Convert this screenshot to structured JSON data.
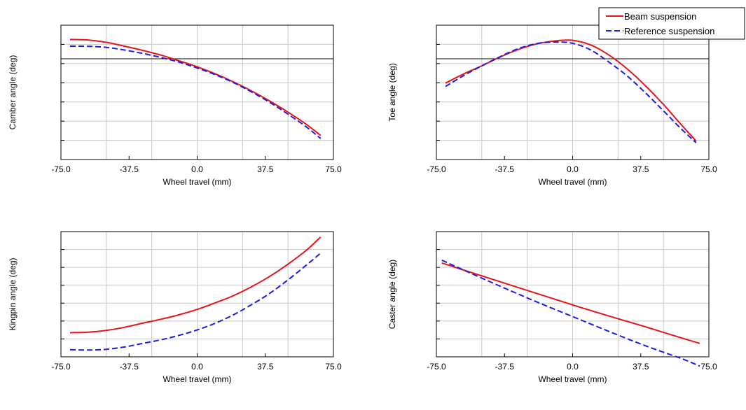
{
  "legend": {
    "entries": [
      {
        "label": "Beam suspension",
        "color": "#e8141b",
        "style": "solid"
      },
      {
        "label": "Reference suspension",
        "color": "#1c1ce6",
        "style": "dashed"
      }
    ]
  },
  "chart_data": [
    {
      "type": "line",
      "xlabel": "Wheel travel (mm)",
      "ylabel": "Camber angle (deg)",
      "xlim": [
        -75,
        75
      ],
      "ylim": [
        -6,
        2
      ],
      "xticks": [
        -75,
        -37.5,
        0,
        37.5,
        75
      ],
      "xtick_labels": [
        "-75.0",
        "-37.5",
        "0.0",
        "37.5",
        "75.0"
      ],
      "grid": true,
      "reference_line_y": 0,
      "legend": "top-right",
      "series": [
        {
          "name": "Beam suspension",
          "color": "#e8141b",
          "style": "solid",
          "x": [
            -70,
            -60,
            -50,
            -40,
            -30,
            -20,
            -10,
            0,
            10,
            20,
            30,
            40,
            50,
            60,
            68
          ],
          "y": [
            1.15,
            1.12,
            0.98,
            0.75,
            0.5,
            0.22,
            -0.12,
            -0.48,
            -0.9,
            -1.38,
            -1.92,
            -2.52,
            -3.18,
            -3.9,
            -4.57
          ]
        },
        {
          "name": "Reference suspension",
          "color": "#1c1ce6",
          "style": "dashed",
          "x": [
            -70,
            -60,
            -50,
            -40,
            -30,
            -20,
            -10,
            0,
            10,
            20,
            30,
            40,
            50,
            60,
            68
          ],
          "y": [
            0.75,
            0.74,
            0.68,
            0.52,
            0.32,
            0.08,
            -0.2,
            -0.55,
            -0.95,
            -1.42,
            -1.98,
            -2.6,
            -3.3,
            -4.05,
            -4.75
          ]
        }
      ]
    },
    {
      "type": "line",
      "xlabel": "Wheel travel (mm)",
      "ylabel": "Toe angle (deg)",
      "xlim": [
        -75,
        75
      ],
      "ylim": [
        -6,
        2
      ],
      "xticks": [
        -75,
        -37.5,
        0,
        37.5,
        75
      ],
      "xtick_labels": [
        "-75.0",
        "-37.5",
        "0.0",
        "37.5",
        "75.0"
      ],
      "grid": true,
      "reference_line_y": 0,
      "series": [
        {
          "name": "Beam suspension",
          "color": "#e8141b",
          "style": "solid",
          "x": [
            -70,
            -60,
            -50,
            -40,
            -30,
            -20,
            -10,
            0,
            10,
            20,
            30,
            40,
            50,
            60,
            68
          ],
          "y": [
            -1.45,
            -0.9,
            -0.42,
            0.1,
            0.55,
            0.88,
            1.06,
            1.1,
            0.82,
            0.22,
            -0.6,
            -1.6,
            -2.72,
            -3.95,
            -4.9
          ]
        },
        {
          "name": "Reference suspension",
          "color": "#1c1ce6",
          "style": "dashed",
          "x": [
            -70,
            -60,
            -50,
            -40,
            -30,
            -20,
            -10,
            0,
            10,
            20,
            30,
            40,
            50,
            60,
            68
          ],
          "y": [
            -1.65,
            -1.0,
            -0.42,
            0.12,
            0.6,
            0.9,
            1.0,
            0.92,
            0.52,
            -0.2,
            -1.02,
            -2.02,
            -3.1,
            -4.2,
            -5.0
          ]
        }
      ]
    },
    {
      "type": "line",
      "xlabel": "Wheel travel (mm)",
      "ylabel": "Kingpin angle (deg)",
      "xlim": [
        -75,
        75
      ],
      "ylim": [
        -1,
        6
      ],
      "xticks": [
        -75,
        -37.5,
        0,
        37.5,
        75
      ],
      "xtick_labels": [
        "-75.0",
        "-37.5",
        "0.0",
        "37.5",
        "75.0"
      ],
      "grid": true,
      "series": [
        {
          "name": "Beam suspension",
          "color": "#e8141b",
          "style": "solid",
          "x": [
            -70,
            -60,
            -50,
            -40,
            -30,
            -20,
            -10,
            0,
            10,
            20,
            30,
            40,
            50,
            60,
            68
          ],
          "y": [
            0.35,
            0.38,
            0.48,
            0.65,
            0.88,
            1.1,
            1.35,
            1.65,
            2.02,
            2.42,
            2.92,
            3.5,
            4.18,
            4.95,
            5.7
          ]
        },
        {
          "name": "Reference suspension",
          "color": "#1c1ce6",
          "style": "dashed",
          "x": [
            -70,
            -60,
            -50,
            -40,
            -30,
            -20,
            -10,
            0,
            10,
            20,
            30,
            40,
            50,
            60,
            68
          ],
          "y": [
            -0.6,
            -0.62,
            -0.58,
            -0.45,
            -0.25,
            -0.05,
            0.2,
            0.5,
            0.88,
            1.35,
            1.92,
            2.55,
            3.3,
            4.12,
            4.8
          ]
        }
      ]
    },
    {
      "type": "line",
      "xlabel": "Wheel travel (mm)",
      "ylabel": "Caster angle (deg)",
      "xlim": [
        -75,
        75
      ],
      "ylim": [
        -3,
        4
      ],
      "xticks": [
        -75,
        -37.5,
        0,
        37.5,
        75
      ],
      "xtick_labels": [
        "-75.0",
        "-37.5",
        "0.0",
        "37.5",
        "75.0"
      ],
      "grid": true,
      "series": [
        {
          "name": "Beam suspension",
          "color": "#e8141b",
          "style": "solid",
          "x": [
            -72,
            -60,
            -40,
            -20,
            0,
            20,
            40,
            60,
            70
          ],
          "y": [
            2.25,
            1.85,
            1.2,
            0.55,
            -0.1,
            -0.72,
            -1.32,
            -1.95,
            -2.25
          ]
        },
        {
          "name": "Reference suspension",
          "color": "#1c1ce6",
          "style": "dashed",
          "x": [
            -72,
            -60,
            -40,
            -20,
            0,
            20,
            40,
            60,
            70
          ],
          "y": [
            2.4,
            1.85,
            0.95,
            0.08,
            -0.75,
            -1.58,
            -2.38,
            -3.1,
            -3.52
          ]
        }
      ]
    }
  ]
}
